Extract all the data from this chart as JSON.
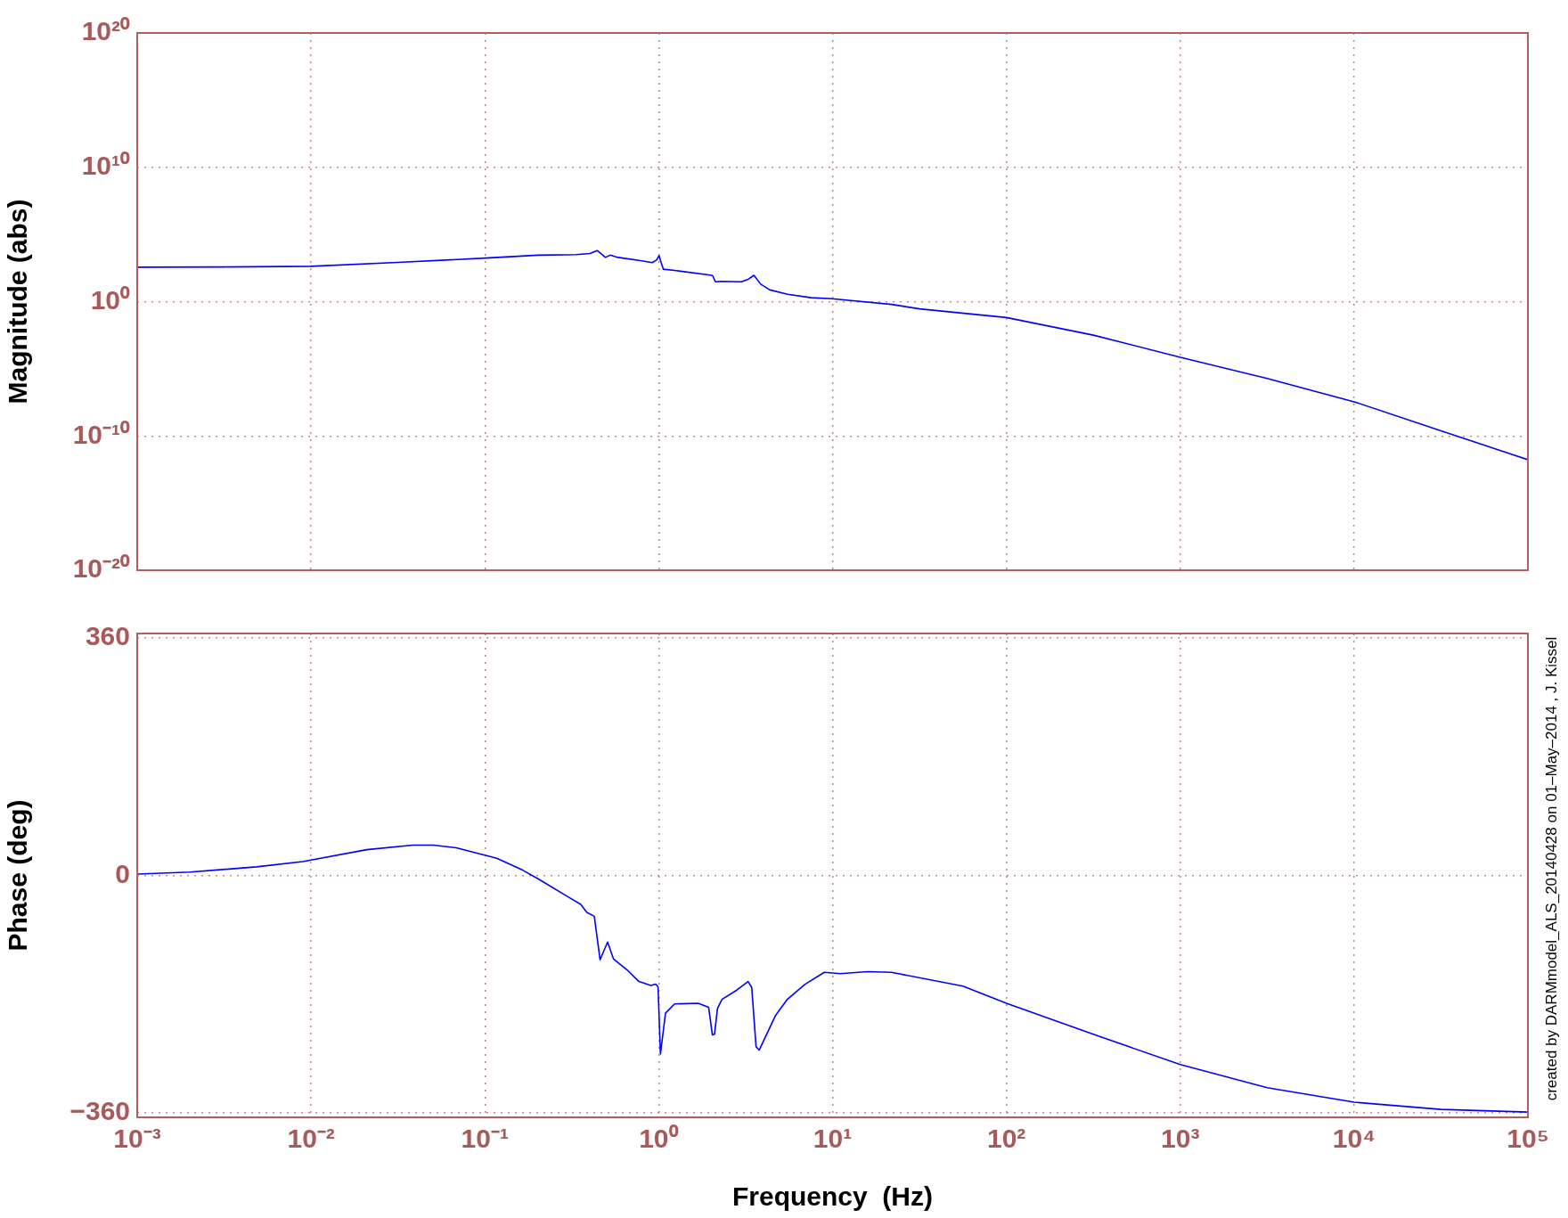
{
  "chart_data": [
    {
      "type": "line",
      "ylabel": "Magnitude (abs)",
      "log": "xy",
      "grid": true,
      "tick_labels": "y",
      "marker": "none",
      "xlim": [
        0.001,
        100000
      ],
      "xticks": [
        {
          "value": 0.001,
          "label": null
        },
        {
          "value": 0.01,
          "label": null
        },
        {
          "value": 0.1,
          "label": null
        },
        {
          "value": 1,
          "label": null
        },
        {
          "value": 10,
          "label": null
        },
        {
          "value": 100,
          "label": null
        },
        {
          "value": 1000,
          "label": null
        },
        {
          "value": 10000,
          "label": null
        },
        {
          "value": 100000,
          "label": null
        }
      ],
      "ylim": [
        1e-20,
        1e+20
      ],
      "yticks": [
        {
          "value": 1e-20,
          "label": "10⁻²⁰"
        },
        {
          "value": 1e-10,
          "label": "10⁻¹⁰"
        },
        {
          "value": 1,
          "label": "10⁰"
        },
        {
          "value": 10000000000.0,
          "label": "10¹⁰"
        },
        {
          "value": 1e+20,
          "label": "10²⁰"
        }
      ],
      "x": [
        0.001,
        0.00316,
        0.01,
        0.0316,
        0.107,
        0.202,
        0.336,
        0.402,
        0.443,
        0.494,
        0.525,
        0.583,
        0.8,
        0.918,
        0.973,
        1.005,
        1.033,
        1.064,
        1.233,
        1.977,
        2.04,
        2.12,
        2.28,
        2.99,
        3.27,
        3.53,
        3.86,
        4.36,
        5.51,
        7.53,
        9.91,
        21.8,
        31.6,
        100,
        316,
        1000,
        3162,
        10000,
        31623,
        100000
      ],
      "series": [
        {
          "color": "#0000ff",
          "values": [
            363,
            380,
            427,
            832,
            1820,
            2880,
            3160,
            3800,
            6310,
            1950,
            2880,
            1950,
            1070,
            794,
            1290,
            2630,
            794,
            257,
            209,
            95,
            87,
            30,
            32,
            30,
            46,
            91,
            20,
            7.4,
            3.5,
            1.95,
            1.66,
            0.62,
            0.29,
            0.065,
            0.0032,
            7.2e-05,
            1.9e-06,
            3.5e-08,
            2.4e-10,
            1.7e-12
          ]
        }
      ]
    },
    {
      "type": "line",
      "xlabel": "Frequency  (Hz)",
      "ylabel": "Phase (deg)",
      "log": "x",
      "grid": true,
      "marker": "none",
      "xlim": [
        0.001,
        100000
      ],
      "xticks": [
        {
          "value": 0.001,
          "label": "10⁻³"
        },
        {
          "value": 0.01,
          "label": "10⁻²"
        },
        {
          "value": 0.1,
          "label": "10⁻¹"
        },
        {
          "value": 1,
          "label": "10⁰"
        },
        {
          "value": 10,
          "label": "10¹"
        },
        {
          "value": 100,
          "label": "10²"
        },
        {
          "value": 1000,
          "label": "10³"
        },
        {
          "value": 10000,
          "label": "10⁴"
        },
        {
          "value": 100000,
          "label": "10⁵"
        }
      ],
      "ylim": [
        -367,
        367
      ],
      "yticks": [
        {
          "value": -360,
          "label": "−360"
        },
        0,
        360
      ],
      "x": [
        0.001,
        0.00202,
        0.00486,
        0.00895,
        0.0209,
        0.0385,
        0.0504,
        0.0684,
        0.117,
        0.165,
        0.202,
        0.303,
        0.356,
        0.386,
        0.426,
        0.46,
        0.508,
        0.55,
        0.656,
        0.769,
        0.9,
        0.961,
        0.991,
        1.023,
        1.094,
        1.233,
        1.687,
        1.936,
        2.037,
        2.094,
        2.178,
        2.312,
        2.812,
        3.266,
        3.428,
        3.631,
        3.784,
        4.688,
        5.495,
        6.95,
        8.97,
        11.1,
        15.9,
        21.8,
        56.2,
        100,
        316,
        1000,
        3162,
        10000,
        31623,
        100000
      ],
      "series": [
        {
          "color": "#0000ff",
          "values": [
            2,
            5,
            13,
            21,
            39,
            46,
            46,
            42,
            26,
            8,
            -5,
            -33,
            -44,
            -56,
            -62,
            -128,
            -101,
            -127,
            -143,
            -161,
            -167,
            -165,
            -169,
            -271,
            -209,
            -195,
            -194,
            -200,
            -242,
            -241,
            -202,
            -188,
            -174,
            -161,
            -170,
            -260,
            -265,
            -213,
            -188,
            -165,
            -147,
            -149,
            -146,
            -147,
            -168,
            -194,
            -241,
            -287,
            -322,
            -344,
            -355,
            -359
          ]
        }
      ],
      "annotations": [
        "created by DARMmodel_ALS_20140428 on 01–May–2014 , J. Kissel"
      ]
    }
  ]
}
